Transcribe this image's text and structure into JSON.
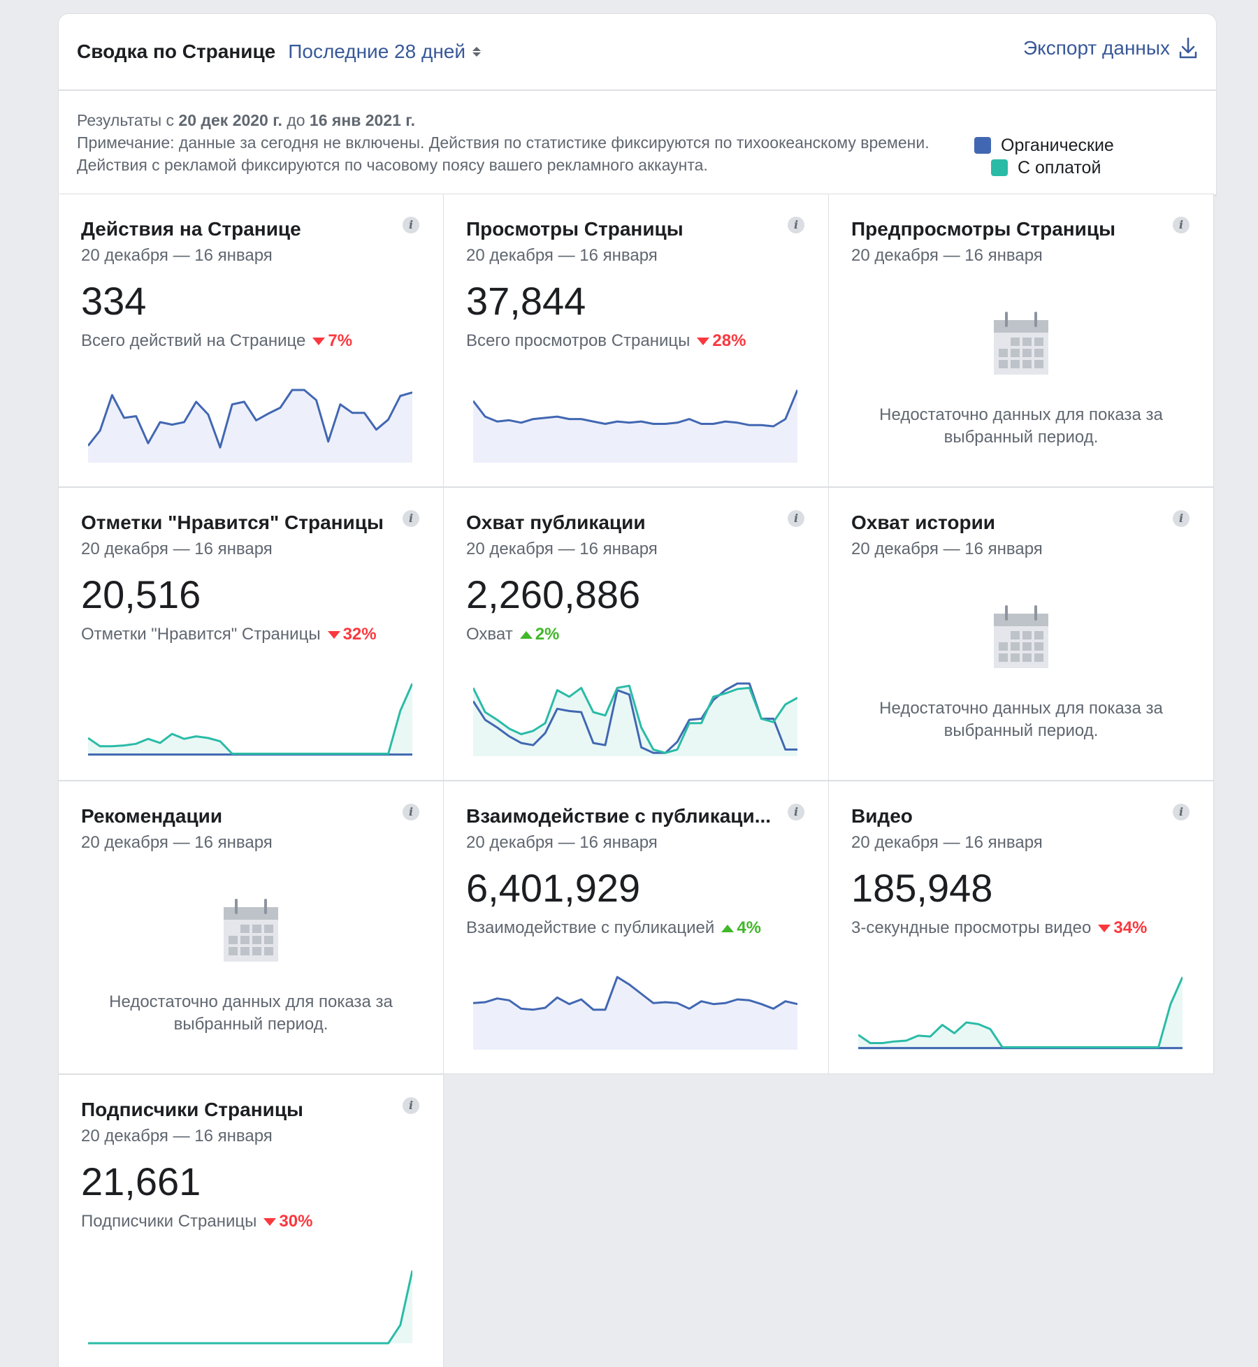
{
  "header": {
    "title": "Сводка по Странице",
    "period": "Последние 28 дней",
    "export": "Экспорт данных"
  },
  "info": {
    "results_prefix": "Результаты с",
    "date_from": "20 дек 2020 г.",
    "results_mid": "до",
    "date_to": "16 янв 2021 г.",
    "note": "Примечание: данные за сегодня не включены. Действия по статистике фиксируются по тихоокеанскому времени. Действия с рекламой фиксируются по часовому поясу вашего рекламного аккаунта."
  },
  "legend": {
    "organic": "Органические",
    "paid": "С оплатой"
  },
  "colors": {
    "organic": "#4267b2",
    "paid": "#2abba7",
    "fill": "#edf0fb",
    "link": "#385898",
    "down": "#fa383e",
    "up": "#42b72a"
  },
  "cards": [
    {
      "title": "Действия на Странице",
      "date": "20 декабря — 16 января",
      "value": "334",
      "sub": "Всего действий на Странице",
      "pct": "7%",
      "dir": "down",
      "organic": [
        20,
        38,
        80,
        53,
        55,
        23,
        48,
        45,
        48,
        72,
        57,
        18,
        69,
        72,
        50,
        58,
        65,
        86,
        86,
        74,
        25,
        69,
        59,
        59,
        39,
        51,
        79,
        83
      ],
      "paid": null
    },
    {
      "title": "Просмотры Страницы",
      "date": "20 декабря — 16 января",
      "value": "37,844",
      "sub": "Всего просмотров Страницы",
      "pct": "28%",
      "dir": "down",
      "organic": [
        51,
        38,
        34,
        35,
        33,
        36,
        37,
        38,
        36,
        36,
        34,
        32,
        34,
        33,
        34,
        32,
        32,
        33,
        36,
        32,
        32,
        34,
        33,
        31,
        31,
        30,
        36,
        60
      ],
      "paid": null
    },
    {
      "title": "Предпросмотры Страницы",
      "date": "20 декабря — 16 января",
      "nodata": "Недостаточно данных для показа за выбранный период."
    },
    {
      "title": "Отметки \"Нравится\" Страницы",
      "date": "20 декабря — 16 января",
      "value": "20,516",
      "sub": "Отметки \"Нравится\" Страницы",
      "pct": "32%",
      "dir": "down",
      "organic": [
        2,
        2,
        2,
        2,
        2,
        2,
        2,
        2,
        2,
        2,
        2,
        2,
        2,
        2,
        2,
        2,
        2,
        2,
        2,
        2,
        2,
        2,
        2,
        2,
        2,
        2,
        2,
        2
      ],
      "paid": [
        22,
        12,
        12,
        13,
        15,
        21,
        16,
        27,
        21,
        24,
        22,
        18,
        3,
        3,
        3,
        3,
        3,
        3,
        3,
        3,
        3,
        3,
        3,
        3,
        3,
        3,
        55,
        88
      ]
    },
    {
      "title": "Охват публикации",
      "date": "20 декабря — 16 января",
      "value": "2,260,886",
      "sub": "Охват",
      "pct": "2%",
      "dir": "up",
      "organic": [
        50,
        33,
        26,
        18,
        12,
        10,
        21,
        43,
        41,
        40,
        12,
        10,
        60,
        56,
        8,
        3,
        3,
        13,
        33,
        34,
        51,
        60,
        66,
        66,
        34,
        34,
        6,
        6
      ],
      "paid": [
        62,
        40,
        33,
        25,
        20,
        23,
        30,
        60,
        54,
        62,
        40,
        37,
        62,
        64,
        26,
        6,
        3,
        6,
        30,
        30,
        54,
        57,
        61,
        62,
        34,
        31,
        47,
        53
      ]
    },
    {
      "title": "Охват истории",
      "date": "20 декабря — 16 января",
      "nodata": "Недостаточно данных для показа за выбранный период."
    },
    {
      "title": "Рекомендации",
      "date": "20 декабря — 16 января",
      "nodata": "Недостаточно данных для показа за выбранный период."
    },
    {
      "title": "Взаимодействие с публикаци...",
      "date": "20 декабря — 16 января",
      "value": "6,401,929",
      "sub": "Взаимодействие с публикацией",
      "pct": "4%",
      "dir": "up",
      "organic": [
        50,
        51,
        55,
        53,
        44,
        43,
        45,
        56,
        49,
        54,
        43,
        43,
        78,
        70,
        60,
        50,
        51,
        50,
        44,
        52,
        49,
        50,
        54,
        53,
        49,
        44,
        52,
        49
      ],
      "paid": null
    },
    {
      "title": "Видео",
      "date": "20 декабря — 16 января",
      "value": "185,948",
      "sub": "3-секундные просмотры видео",
      "pct": "34%",
      "dir": "down",
      "organic": [
        2,
        2,
        2,
        2,
        2,
        2,
        2,
        2,
        2,
        2,
        2,
        2,
        2,
        2,
        2,
        2,
        2,
        2,
        2,
        2,
        2,
        2,
        2,
        2,
        2,
        2,
        2,
        2
      ],
      "paid": [
        18,
        8,
        8,
        10,
        11,
        17,
        16,
        30,
        20,
        33,
        31,
        25,
        3,
        3,
        3,
        3,
        3,
        3,
        3,
        3,
        3,
        3,
        3,
        3,
        3,
        3,
        55,
        88
      ]
    },
    {
      "title": "Подписчики Страницы",
      "date": "20 декабря — 16 января",
      "value": "21,661",
      "sub": "Подписчики Страницы",
      "pct": "30%",
      "dir": "down",
      "organic": null,
      "paid": [
        0,
        0,
        0,
        0,
        0,
        0,
        0,
        0,
        0,
        0,
        0,
        0,
        0,
        0,
        0,
        0,
        0,
        0,
        0,
        0,
        0,
        0,
        0,
        0,
        0,
        0,
        5,
        20
      ]
    }
  ]
}
